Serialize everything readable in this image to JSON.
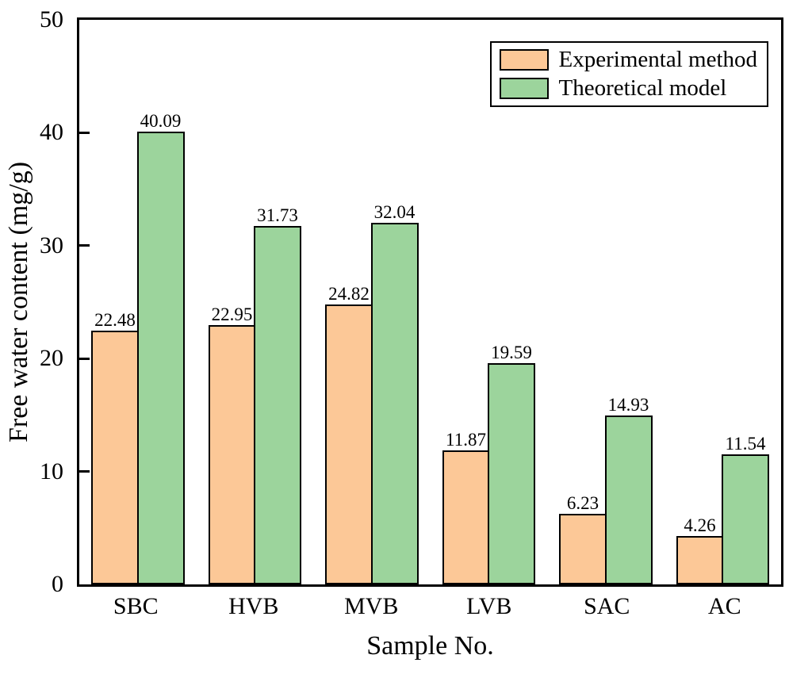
{
  "chart_data": {
    "type": "bar",
    "title": "",
    "xlabel": "Sample No.",
    "ylabel": "Free water content (mg/g)",
    "ylim": [
      0,
      50
    ],
    "yticks": [
      0,
      10,
      20,
      30,
      40,
      50
    ],
    "grid": false,
    "value_labels": true,
    "legend_position": "top-right",
    "categories": [
      "SBC",
      "HVB",
      "MVB",
      "LVB",
      "SAC",
      "AC"
    ],
    "series": [
      {
        "name": "Experimental method",
        "color": "#FCC897",
        "border_color": "#000000",
        "values": [
          22.48,
          22.95,
          24.82,
          11.87,
          6.23,
          4.26
        ]
      },
      {
        "name": "Theoretical model",
        "color": "#9CD49C",
        "border_color": "#000000",
        "values": [
          40.09,
          31.73,
          32.04,
          19.59,
          14.93,
          11.54
        ]
      }
    ],
    "axis_color": "#000000",
    "background_color": "#ffffff"
  }
}
